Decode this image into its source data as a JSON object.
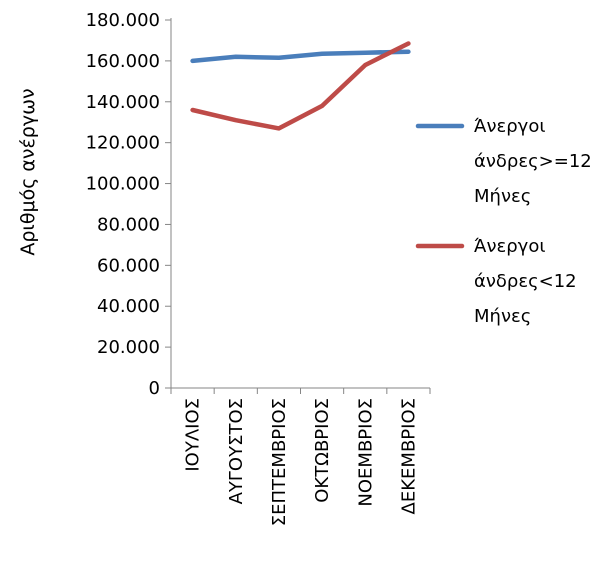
{
  "chart_data": {
    "type": "line",
    "title": "",
    "xlabel": "",
    "ylabel": "Αριθμός ανέργων",
    "categories": [
      "ΙΟΥΛΙΟΣ",
      "ΑΥΓΟΥΣΤΟΣ",
      "ΣΕΠΤΕΜΒΡΙΟΣ",
      "ΟΚΤΩΒΡΙΟΣ",
      "ΝΟΕΜΒΡΙΟΣ",
      "ΔΕΚΕΜΒΡΙΟΣ"
    ],
    "ylim": [
      0,
      180000
    ],
    "yticks": [
      {
        "value": 0,
        "label": "0"
      },
      {
        "value": 20000,
        "label": "20.000"
      },
      {
        "value": 40000,
        "label": "40.000"
      },
      {
        "value": 60000,
        "label": "60.000"
      },
      {
        "value": 80000,
        "label": "80.000"
      },
      {
        "value": 100000,
        "label": "100.000"
      },
      {
        "value": 120000,
        "label": "120.000"
      },
      {
        "value": 140000,
        "label": "140.000"
      },
      {
        "value": 160000,
        "label": "160.000"
      },
      {
        "value": 180000,
        "label": "180.000"
      }
    ],
    "grid": false,
    "legend_position": "right",
    "series": [
      {
        "name": "Άνεργοι άνδρες>=12 Μήνες",
        "legend_lines": [
          "Άνεργοι",
          "άνδρες>=12",
          "Μήνες"
        ],
        "color": "#4a7ebb",
        "values": [
          160000,
          162000,
          161500,
          163500,
          164000,
          164500
        ]
      },
      {
        "name": "Άνεργοι άνδρες<12 Μήνες",
        "legend_lines": [
          "Άνεργοι",
          "άνδρες<12",
          "Μήνες"
        ],
        "color": "#be4b48",
        "values": [
          136000,
          131000,
          127000,
          138000,
          158000,
          168500
        ]
      }
    ]
  }
}
